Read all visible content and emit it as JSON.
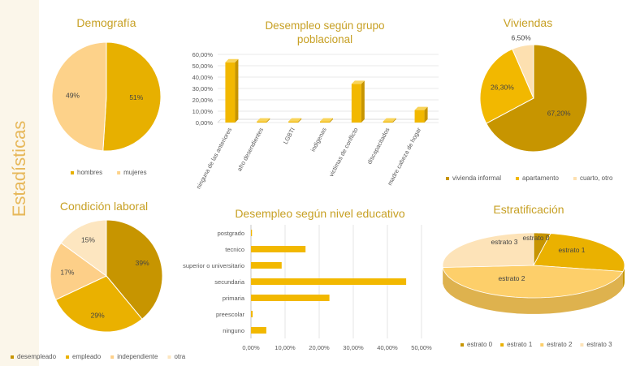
{
  "sidebar": {
    "title": "Estadísticas"
  },
  "chart_data": [
    {
      "id": "demografia",
      "type": "pie",
      "title": "Demografía",
      "categories": [
        "hombres",
        "mujeres"
      ],
      "values": [
        51,
        49
      ],
      "labels": [
        "51%",
        "49%"
      ],
      "colors": [
        "#e7b000",
        "#fdd28a"
      ],
      "legend": "bottom"
    },
    {
      "id": "desempleo_grupo",
      "type": "bar",
      "title": "Desempleo según grupo poblacional",
      "title_lines": [
        "Desempleo según grupo",
        "poblacional"
      ],
      "categories": [
        "ninguna de las anteriores",
        "afro desendientes",
        "LGBTI",
        "indigenas",
        "victimas de conflicto",
        "discapacitados",
        "madre cabeza de hogar"
      ],
      "values": [
        53,
        1,
        1,
        1,
        34,
        1,
        11
      ],
      "ylim": [
        0,
        60
      ],
      "yticks": [
        "0,00%",
        "10,00%",
        "20,00%",
        "30,00%",
        "40,00%",
        "50,00%",
        "60,00%"
      ],
      "color": "#f2b800",
      "grid": true
    },
    {
      "id": "viviendas",
      "type": "pie",
      "title": "Viviendas",
      "categories": [
        "vivienda informal",
        "apartamento",
        "cuarto, otro"
      ],
      "values": [
        67.2,
        26.3,
        6.5
      ],
      "labels": [
        "67,20%",
        "26,30%",
        "6,50%"
      ],
      "colors": [
        "#c79500",
        "#f2b800",
        "#fde0b0"
      ],
      "legend": "bottom"
    },
    {
      "id": "condicion_laboral",
      "type": "pie",
      "title": "Condición laboral",
      "categories": [
        "desempleado",
        "empleado",
        "independiente",
        "otra"
      ],
      "values": [
        39,
        29,
        17,
        15
      ],
      "labels": [
        "39%",
        "29%",
        "17%",
        "15%"
      ],
      "colors": [
        "#c79500",
        "#eab100",
        "#fdcf88",
        "#fde6c0"
      ],
      "legend": "bottom"
    },
    {
      "id": "desempleo_nivel",
      "type": "bar",
      "orientation": "horizontal",
      "title": "Desempleo según nivel educativo",
      "categories": [
        "postgrado",
        "tecnico",
        "superior o universitario",
        "secundaria",
        "primaria",
        "preescolar",
        "ninguno"
      ],
      "values": [
        0.3,
        16,
        9,
        45.5,
        23,
        0.5,
        4.5
      ],
      "xlim": [
        0,
        50
      ],
      "xticks": [
        "0,00%",
        "10,00%",
        "20,00%",
        "30,00%",
        "40,00%",
        "50,00%"
      ],
      "color": "#f2b800",
      "grid": true
    },
    {
      "id": "estratificacion",
      "type": "pie",
      "subtype": "3d",
      "title": "Estratificación",
      "categories": [
        "estrato 0",
        "estrato 1",
        "estrato 2",
        "estrato 3"
      ],
      "values": [
        3,
        25,
        46,
        26
      ],
      "colors": [
        "#c79500",
        "#eab100",
        "#fdcf6a",
        "#fde3b8"
      ],
      "legend": "bottom"
    }
  ]
}
